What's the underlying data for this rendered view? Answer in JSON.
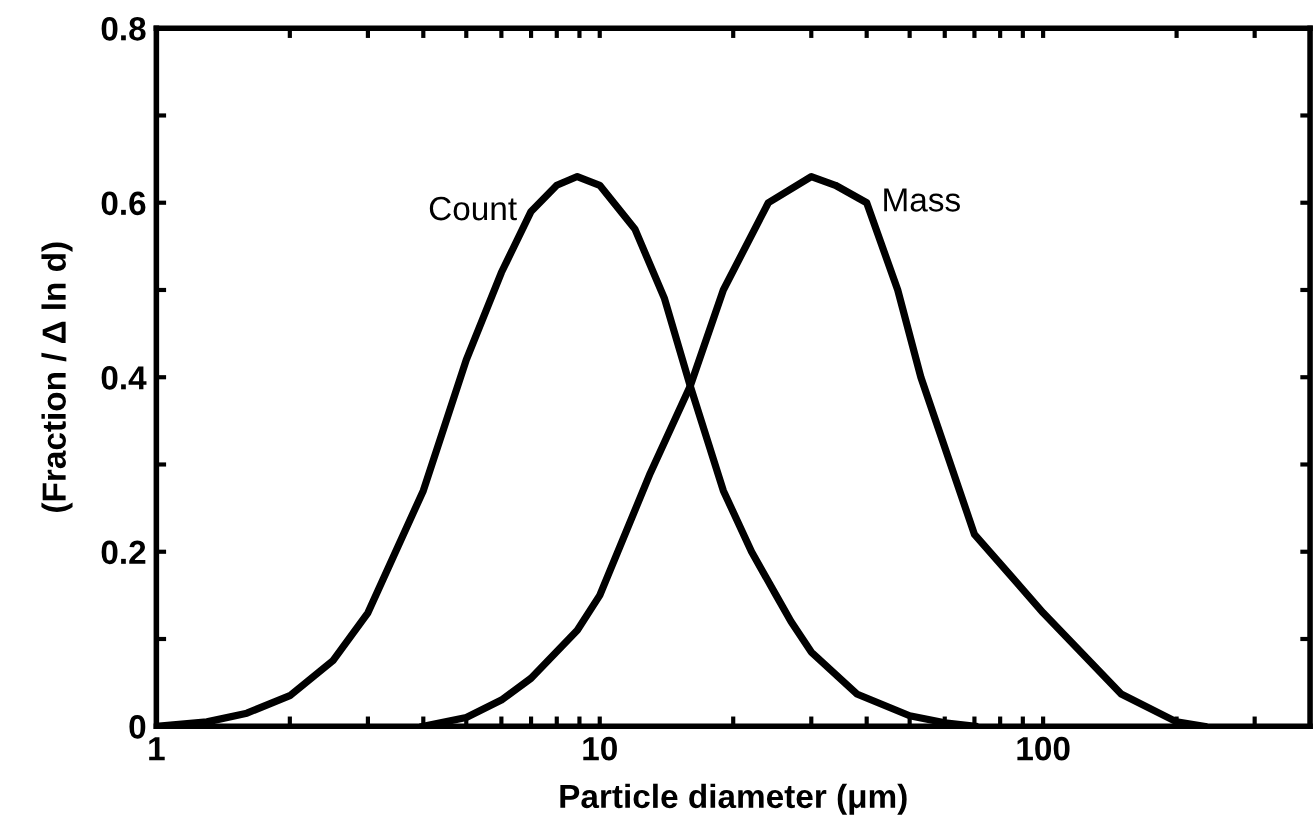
{
  "chart_data": {
    "type": "line",
    "xlabel": "Particle diameter (μm)",
    "ylabel": "(Fraction / Δ ln d)",
    "series": [
      {
        "name": "Count",
        "color": "#000000",
        "x": [
          1,
          1.3,
          1.6,
          2,
          2.5,
          3,
          4,
          5,
          6,
          7,
          8,
          8.9,
          10,
          12,
          14,
          16,
          19,
          22,
          25,
          27,
          30,
          38,
          50,
          60,
          70
        ],
        "values": [
          0,
          0.005,
          0.015,
          0.035,
          0.075,
          0.13,
          0.27,
          0.42,
          0.52,
          0.59,
          0.62,
          0.63,
          0.62,
          0.57,
          0.49,
          0.39,
          0.27,
          0.2,
          0.15,
          0.12,
          0.085,
          0.037,
          0.012,
          0.004,
          0
        ]
      },
      {
        "name": "Mass",
        "color": "#000000",
        "x": [
          4,
          5,
          6,
          7,
          8.9,
          10,
          13,
          16,
          19,
          24,
          30,
          34,
          40,
          47,
          53,
          70,
          100,
          150,
          200,
          230
        ],
        "values": [
          0,
          0.01,
          0.03,
          0.055,
          0.11,
          0.15,
          0.29,
          0.39,
          0.5,
          0.6,
          0.63,
          0.62,
          0.6,
          0.5,
          0.4,
          0.22,
          0.13,
          0.037,
          0.005,
          0
        ]
      }
    ],
    "log": "x",
    "xlim": [
      1,
      400
    ],
    "xticks": [
      1,
      {
        "value": 2,
        "label": null
      },
      {
        "value": 3,
        "label": null
      },
      {
        "value": 4,
        "label": null
      },
      {
        "value": 5,
        "label": null
      },
      {
        "value": 6,
        "label": null
      },
      {
        "value": 7,
        "label": null
      },
      {
        "value": 8,
        "label": null
      },
      {
        "value": 9,
        "label": null
      },
      10,
      {
        "value": 20,
        "label": null
      },
      {
        "value": 30,
        "label": null
      },
      {
        "value": 40,
        "label": null
      },
      {
        "value": 50,
        "label": null
      },
      {
        "value": 60,
        "label": null
      },
      {
        "value": 70,
        "label": null
      },
      {
        "value": 80,
        "label": null
      },
      {
        "value": 90,
        "label": null
      },
      100,
      {
        "value": 200,
        "label": null
      },
      {
        "value": 300,
        "label": null
      }
    ],
    "ylim": [
      0,
      0.8
    ],
    "yticks": [
      0,
      {
        "value": 0.1,
        "label": null
      },
      0.2,
      {
        "value": 0.3,
        "label": null
      },
      0.4,
      {
        "value": 0.5,
        "label": null
      },
      0.6,
      {
        "value": 0.7,
        "label": null
      },
      0.8
    ],
    "line_style": "solid",
    "marker": "none",
    "grid": false,
    "legend": false
  }
}
